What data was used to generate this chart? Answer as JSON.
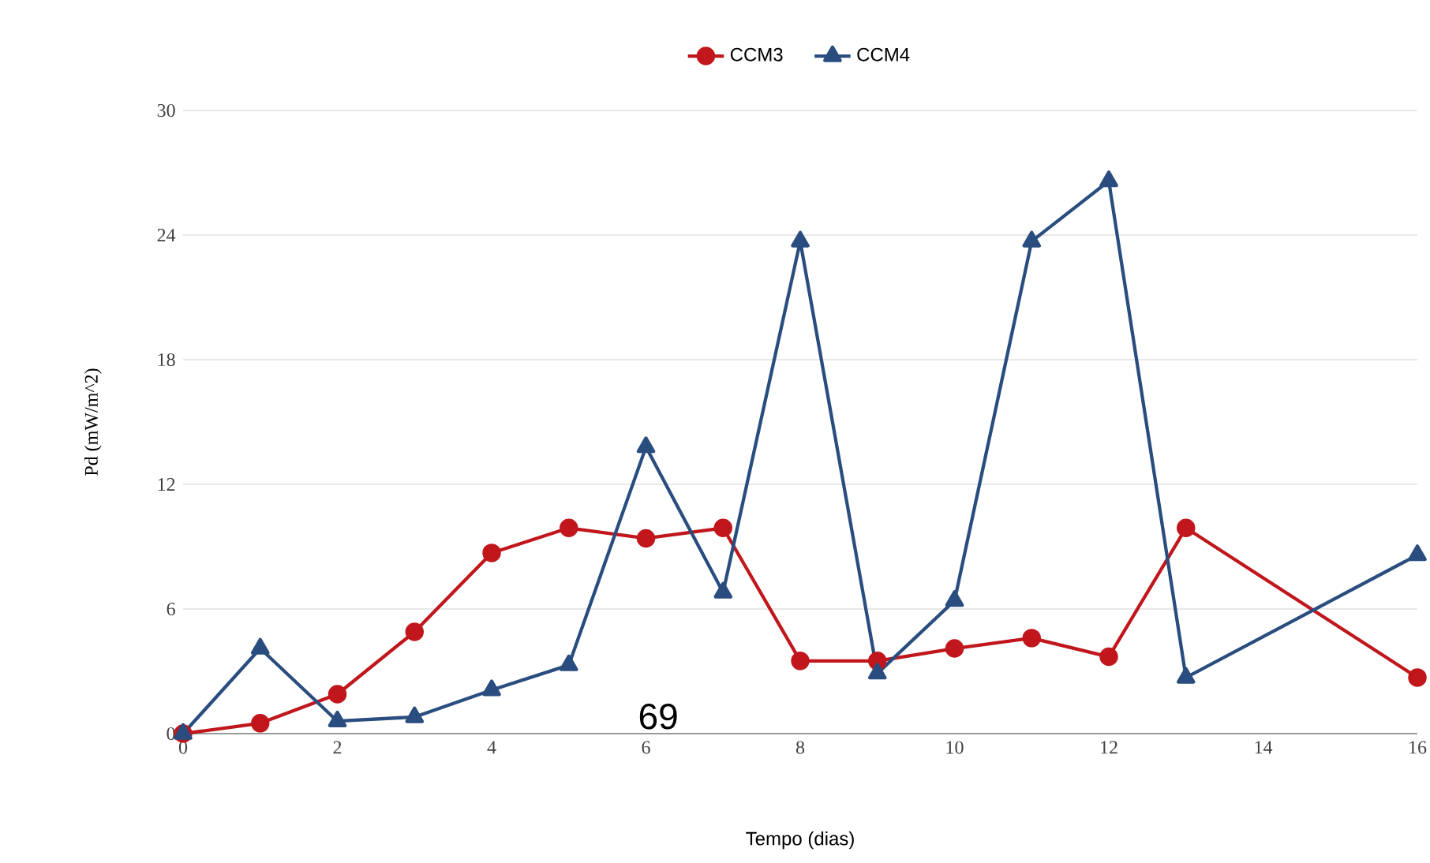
{
  "chart_data": {
    "type": "line",
    "xlabel": "Tempo (dias)",
    "ylabel": "Pd (mW/m^2)",
    "x": [
      0,
      1,
      2,
      3,
      4,
      5,
      6,
      7,
      8,
      9,
      10,
      11,
      12,
      13,
      16
    ],
    "series": [
      {
        "name": "CCM3",
        "color": "#c0161c",
        "marker": "circle",
        "values": [
          0,
          0.5,
          1.9,
          4.9,
          8.7,
          9.9,
          9.4,
          9.9,
          3.5,
          3.5,
          4.1,
          4.6,
          3.7,
          9.9,
          2.7
        ]
      },
      {
        "name": "CCM4",
        "color": "#2a4d7f",
        "marker": "triangle",
        "values": [
          0,
          4.1,
          0.6,
          0.8,
          2.1,
          3.3,
          13.8,
          6.8,
          23.7,
          2.9,
          6.4,
          23.7,
          26.6,
          2.7,
          8.6
        ]
      }
    ],
    "xlim": [
      0,
      16
    ],
    "xticks": [
      0,
      2,
      4,
      6,
      8,
      10,
      12,
      14,
      16
    ],
    "ylim": [
      0,
      30
    ],
    "yticks": [
      0,
      6,
      12,
      18,
      24,
      30
    ],
    "grid": "y",
    "legend": "top",
    "line_style": "solid",
    "annotations": [
      "69"
    ]
  }
}
